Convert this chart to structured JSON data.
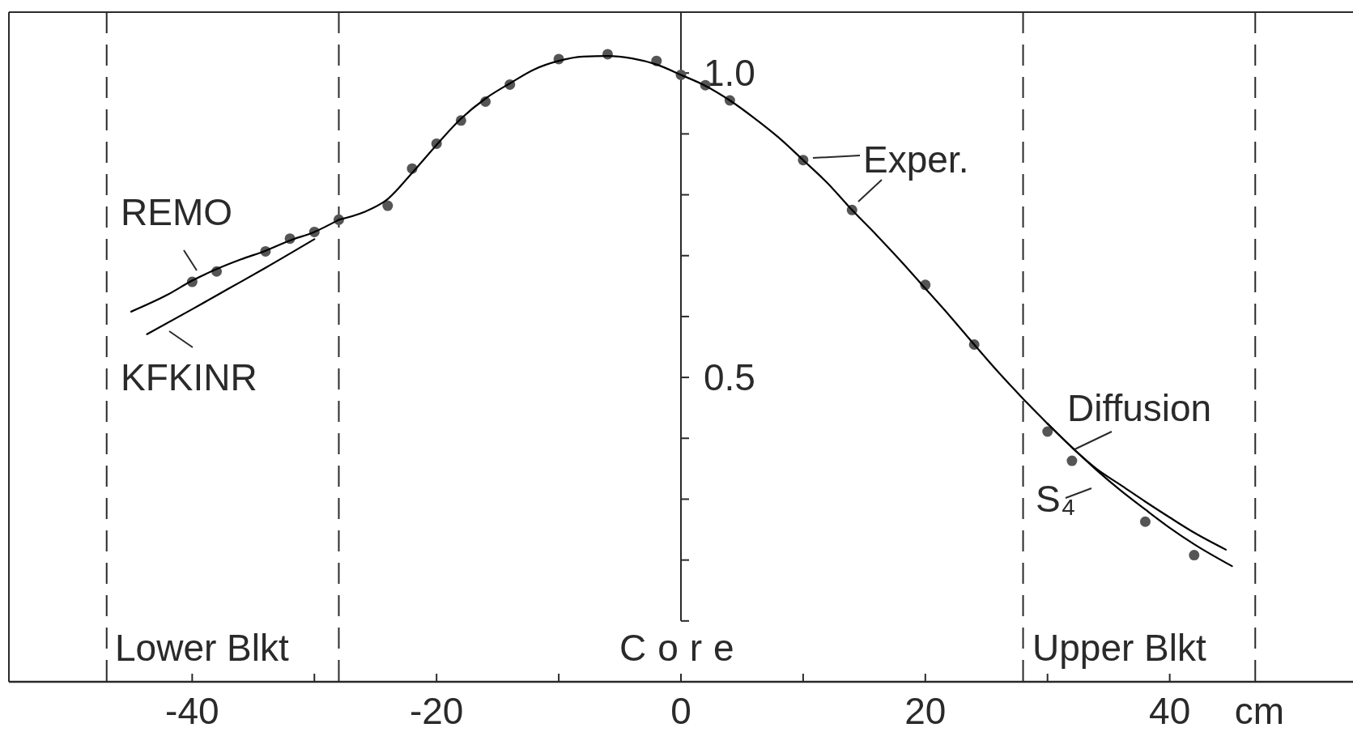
{
  "chart_data": {
    "type": "line",
    "xlabel": "cm",
    "xlim": [
      -55,
      55
    ],
    "ylim": [
      0,
      1.1
    ],
    "xticks": [
      -40,
      {
        "value": -30,
        "label": null
      },
      -20,
      {
        "value": -10,
        "label": null
      },
      0,
      {
        "value": 10,
        "label": null
      },
      20,
      {
        "value": 30,
        "label": null
      },
      40
    ],
    "yticks": [
      {
        "value": 0.1,
        "label": null
      },
      {
        "value": 0.2,
        "label": null
      },
      {
        "value": 0.3,
        "label": null
      },
      {
        "value": 0.4,
        "label": null
      },
      0.5,
      {
        "value": 0.6,
        "label": null
      },
      {
        "value": 0.7,
        "label": null
      },
      {
        "value": 0.8,
        "label": null
      },
      {
        "value": 0.9,
        "label": null
      },
      {
        "value": 1.0,
        "label": "1.0"
      }
    ],
    "grid": false,
    "ref_lines": [
      {
        "axis": "x",
        "value": -47,
        "line_style": "dashed"
      },
      {
        "axis": "x",
        "value": -28,
        "line_style": "dashed"
      },
      {
        "axis": "x",
        "value": 28,
        "line_style": "dashed"
      },
      {
        "axis": "x",
        "value": 47,
        "line_style": "dashed"
      }
    ],
    "annotations": [
      "Lower Blkt",
      "Core",
      "Upper Blkt"
    ],
    "series": [
      {
        "name": "Exper.",
        "type": "scatter",
        "marker": "circle",
        "color": "#555555",
        "x": [
          -40,
          -38,
          -34,
          -32,
          -30,
          -28,
          -24,
          -22,
          -20,
          -18,
          -16,
          -14,
          -10,
          -6,
          -2,
          0,
          2,
          4,
          10,
          14,
          20,
          24,
          30,
          32,
          38,
          42
        ],
        "values": [
          0.657,
          0.674,
          0.707,
          0.728,
          0.739,
          0.759,
          0.782,
          0.843,
          0.884,
          0.922,
          0.953,
          0.981,
          1.023,
          1.031,
          1.02,
          0.997,
          0.98,
          0.955,
          0.857,
          0.775,
          0.652,
          0.554,
          0.411,
          0.363,
          0.263,
          0.208
        ]
      },
      {
        "name": "REMO",
        "color": "#000000",
        "x": [
          -45,
          -42,
          -40,
          -38,
          -36,
          -34,
          -32,
          -30,
          -28
        ],
        "values": [
          0.608,
          0.636,
          0.659,
          0.678,
          0.694,
          0.708,
          0.725,
          0.739,
          0.759
        ]
      },
      {
        "name": "KFKINR",
        "color": "#000000",
        "x": [
          -43.7,
          -40,
          -37,
          -34,
          -30
        ],
        "values": [
          0.571,
          0.612,
          0.646,
          0.68,
          0.727
        ]
      },
      {
        "color": "#000000",
        "x": [
          -28,
          -26,
          -24,
          -22,
          -20,
          -18,
          -16,
          -14,
          -12,
          -10,
          -8,
          -6,
          -4,
          -2,
          0,
          2,
          4,
          6,
          8,
          10,
          12,
          14,
          16,
          18,
          20,
          22,
          24,
          26,
          28,
          30
        ],
        "values": [
          0.759,
          0.771,
          0.793,
          0.836,
          0.882,
          0.925,
          0.958,
          0.983,
          1.006,
          1.02,
          1.027,
          1.028,
          1.024,
          1.014,
          0.997,
          0.979,
          0.955,
          0.926,
          0.894,
          0.857,
          0.819,
          0.775,
          0.734,
          0.691,
          0.646,
          0.601,
          0.554,
          0.508,
          0.465,
          0.424
        ]
      },
      {
        "name": "Diffusion",
        "color": "#000000",
        "x": [
          30,
          32,
          34,
          36,
          38,
          40,
          42,
          44.6
        ],
        "values": [
          0.424,
          0.385,
          0.35,
          0.323,
          0.296,
          0.27,
          0.245,
          0.217
        ]
      },
      {
        "name": "S₄",
        "color": "#000000",
        "x": [
          30,
          32,
          34,
          36,
          38,
          40,
          42,
          45.1
        ],
        "values": [
          0.424,
          0.385,
          0.348,
          0.314,
          0.283,
          0.253,
          0.226,
          0.19
        ]
      }
    ]
  }
}
